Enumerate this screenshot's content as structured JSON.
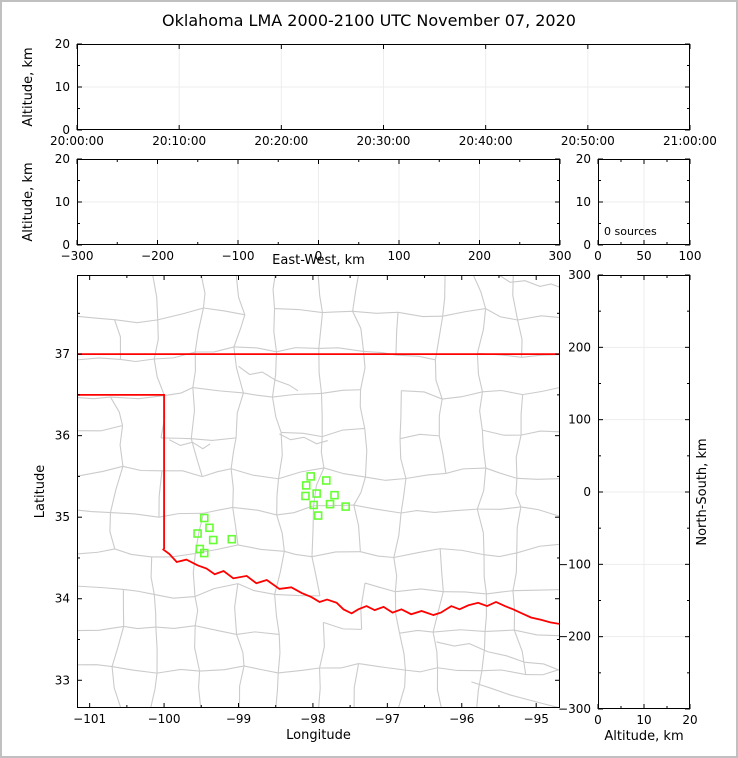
{
  "frame": {
    "title": "Oklahoma LMA 2000-2100 UTC November 07, 2020"
  },
  "colors": {
    "state_border": "#ff0000",
    "county": "#cbcbcb",
    "station": "#66ff33",
    "grid": "#ededed",
    "axis": "#000000",
    "frame_border": "#c0c0c0"
  },
  "panels": {
    "time_height": {
      "ylabel": "Altitude, km",
      "xlim": [
        0,
        60
      ],
      "ylim": [
        0,
        20
      ],
      "xticks": {
        "values": [
          0,
          10,
          20,
          30,
          40,
          50,
          60
        ],
        "labels": [
          "20:00:00",
          "20:10:00",
          "20:20:00",
          "20:30:00",
          "20:40:00",
          "20:50:00",
          "21:00:00"
        ]
      },
      "yticks": {
        "values": [
          0,
          10,
          20
        ],
        "labels": [
          "0",
          "10",
          "20"
        ]
      },
      "yminor": [
        5,
        15
      ],
      "grid": {
        "x": true,
        "y": true
      },
      "ylabel_dx": 45
    },
    "ew_height": {
      "xlabel": "East-West, km",
      "ylabel": "Altitude, km",
      "xlim": [
        -300,
        300
      ],
      "ylim": [
        0,
        20
      ],
      "xticks": {
        "values": [
          -300,
          -200,
          -100,
          0,
          100,
          200,
          300
        ],
        "labels": [
          "−300",
          "−200",
          "−100",
          "0",
          "100",
          "200",
          "300"
        ]
      },
      "yticks": {
        "values": [
          0,
          10,
          20
        ],
        "labels": [
          "0",
          "10",
          "20"
        ]
      },
      "xminor": [
        -250,
        -150,
        -50,
        50,
        150,
        250
      ],
      "yminor": [
        5,
        15
      ],
      "grid": {
        "x": true,
        "y": true
      },
      "xlabel_dy": 19,
      "ylabel_dx": 45
    },
    "alt_histogram": {
      "xlim": [
        0,
        100
      ],
      "ylim": [
        0,
        20
      ],
      "xticks": {
        "values": [
          0,
          50,
          100
        ],
        "labels": [
          "0",
          "50",
          "100"
        ]
      },
      "yticks": {
        "values": [
          0,
          10,
          20
        ],
        "labels": [
          "0",
          "10",
          "20"
        ]
      },
      "xminor": [
        25,
        75
      ],
      "yminor": [
        5,
        15
      ],
      "grid": {
        "x": true,
        "y": true
      },
      "annotation": "0 sources"
    },
    "map": {
      "xlabel": "Longitude",
      "ylabel": "Latitude",
      "xlim": [
        -101.17,
        -94.68
      ],
      "ylim": [
        32.66,
        37.97
      ],
      "xticks": {
        "values": [
          -101,
          -100,
          -99,
          -98,
          -97,
          -96,
          -95
        ],
        "labels": [
          "−101",
          "−100",
          "−99",
          "−98",
          "−97",
          "−96",
          "−95"
        ]
      },
      "yticks": {
        "values": [
          33,
          34,
          35,
          36,
          37
        ],
        "labels": [
          "33",
          "34",
          "35",
          "36",
          "37"
        ]
      },
      "xminor": [
        -100.5,
        -99.5,
        -98.5,
        -97.5,
        -96.5,
        -95.5
      ],
      "yminor": [
        33.5,
        34.5,
        35.5,
        36.5,
        37.5
      ],
      "xlabel_dy": 31,
      "ylabel_dx": 33
    },
    "ns_height": {
      "xlabel": "Altitude, km",
      "ylabel": "North-South, km",
      "ylabel_side": "right",
      "xlim": [
        0,
        20
      ],
      "ylim": [
        -300,
        300
      ],
      "xticks": {
        "values": [
          0,
          10,
          20
        ],
        "labels": [
          "0",
          "10",
          "20"
        ]
      },
      "yticks": {
        "values": [
          -300,
          -200,
          -100,
          0,
          100,
          200,
          300
        ],
        "labels": [
          "−300",
          "−200",
          "−100",
          "0",
          "100",
          "200",
          "300"
        ]
      },
      "xminor": [
        5,
        15
      ],
      "yminor": [
        -250,
        -150,
        -50,
        50,
        150,
        250
      ],
      "grid": {
        "x": true,
        "y": true
      },
      "xlabel_dy": 31
    }
  },
  "chart_data": [
    {
      "panel": "time_height",
      "type": "scatter",
      "xlabel_ticks": "20:00:00 to 21:00:00 UTC",
      "ylabel": "Altitude, km",
      "xlim": [
        "20:00:00",
        "21:00:00"
      ],
      "ylim": [
        0,
        20
      ],
      "points": []
    },
    {
      "panel": "ew_height",
      "type": "scatter",
      "xlabel": "East-West, km",
      "ylabel": "Altitude, km",
      "xlim": [
        -300,
        300
      ],
      "ylim": [
        0,
        20
      ],
      "points": []
    },
    {
      "panel": "alt_histogram",
      "type": "line",
      "annotation": "0 sources",
      "xlim": [
        0,
        100
      ],
      "ylim": [
        0,
        20
      ],
      "points": []
    },
    {
      "panel": "map",
      "type": "scatter",
      "xlabel": "Longitude",
      "ylabel": "Latitude",
      "xlim": [
        -101.17,
        -94.68
      ],
      "ylim": [
        32.66,
        37.97
      ],
      "points": [],
      "stations": [
        [
          -98.03,
          35.5
        ],
        [
          -97.82,
          35.45
        ],
        [
          -98.09,
          35.39
        ],
        [
          -97.95,
          35.29
        ],
        [
          -98.1,
          35.26
        ],
        [
          -97.71,
          35.27
        ],
        [
          -97.77,
          35.16
        ],
        [
          -97.99,
          35.15
        ],
        [
          -97.56,
          35.13
        ],
        [
          -97.93,
          35.02
        ],
        [
          -99.46,
          34.99
        ],
        [
          -99.39,
          34.87
        ],
        [
          -99.55,
          34.8
        ],
        [
          -99.09,
          34.73
        ],
        [
          -99.34,
          34.72
        ],
        [
          -99.52,
          34.61
        ],
        [
          -99.46,
          34.56
        ]
      ],
      "state_border": [
        {
          "name": "oklahoma-north-border",
          "points": [
            [
              -101.17,
              37.0
            ],
            [
              -94.68,
              37.0
            ]
          ]
        },
        {
          "name": "oklahoma-panhandle-and-west-border",
          "points": [
            [
              -101.17,
              36.5
            ],
            [
              -100.0,
              36.5
            ],
            [
              -100.0,
              34.61
            ]
          ]
        },
        {
          "name": "oklahoma-red-river-south-border",
          "points": [
            [
              -100.02,
              34.61
            ],
            [
              -99.93,
              34.55
            ],
            [
              -99.83,
              34.45
            ],
            [
              -99.7,
              34.48
            ],
            [
              -99.55,
              34.41
            ],
            [
              -99.43,
              34.37
            ],
            [
              -99.32,
              34.3
            ],
            [
              -99.2,
              34.34
            ],
            [
              -99.07,
              34.25
            ],
            [
              -98.89,
              34.28
            ],
            [
              -98.76,
              34.19
            ],
            [
              -98.62,
              34.23
            ],
            [
              -98.45,
              34.12
            ],
            [
              -98.29,
              34.14
            ],
            [
              -98.15,
              34.07
            ],
            [
              -98.02,
              34.02
            ],
            [
              -97.91,
              33.96
            ],
            [
              -97.81,
              33.99
            ],
            [
              -97.68,
              33.95
            ],
            [
              -97.59,
              33.87
            ],
            [
              -97.48,
              33.82
            ],
            [
              -97.39,
              33.87
            ],
            [
              -97.28,
              33.91
            ],
            [
              -97.17,
              33.86
            ],
            [
              -97.05,
              33.9
            ],
            [
              -96.93,
              33.83
            ],
            [
              -96.81,
              33.87
            ],
            [
              -96.68,
              33.81
            ],
            [
              -96.54,
              33.85
            ],
            [
              -96.38,
              33.8
            ],
            [
              -96.28,
              33.83
            ],
            [
              -96.14,
              33.91
            ],
            [
              -96.03,
              33.87
            ],
            [
              -95.91,
              33.92
            ],
            [
              -95.78,
              33.95
            ],
            [
              -95.66,
              33.91
            ],
            [
              -95.54,
              33.96
            ],
            [
              -95.42,
              33.91
            ],
            [
              -95.31,
              33.87
            ],
            [
              -95.19,
              33.82
            ],
            [
              -95.07,
              33.77
            ],
            [
              -94.93,
              33.74
            ],
            [
              -94.81,
              33.71
            ],
            [
              -94.68,
              33.69
            ]
          ]
        }
      ],
      "rivers": [
        [
          [
            -96.34,
            33.47
          ],
          [
            -96.1,
            33.42
          ],
          [
            -95.9,
            33.45
          ],
          [
            -95.65,
            33.35
          ],
          [
            -95.4,
            33.3
          ],
          [
            -95.15,
            33.22
          ],
          [
            -94.9,
            33.2
          ],
          [
            -94.68,
            33.12
          ]
        ],
        [
          [
            -95.87,
            32.98
          ],
          [
            -95.6,
            32.9
          ],
          [
            -95.35,
            32.82
          ],
          [
            -95.1,
            32.76
          ],
          [
            -94.85,
            32.7
          ],
          [
            -94.68,
            32.66
          ]
        ],
        [
          [
            -99.93,
            35.95
          ],
          [
            -99.78,
            35.88
          ],
          [
            -99.62,
            35.92
          ],
          [
            -99.48,
            35.84
          ],
          [
            -99.38,
            35.9
          ]
        ],
        [
          [
            -99.0,
            36.85
          ],
          [
            -98.85,
            36.75
          ],
          [
            -98.68,
            36.78
          ],
          [
            -98.5,
            36.68
          ],
          [
            -98.32,
            36.62
          ],
          [
            -98.2,
            36.55
          ]
        ],
        [
          [
            -98.45,
            36.02
          ],
          [
            -98.3,
            35.95
          ],
          [
            -98.12,
            35.98
          ],
          [
            -97.95,
            35.9
          ],
          [
            -97.8,
            35.94
          ]
        ],
        [
          [
            -95.5,
            37.97
          ],
          [
            -95.35,
            37.88
          ],
          [
            -95.15,
            37.9
          ],
          [
            -94.95,
            37.83
          ],
          [
            -94.8,
            37.86
          ],
          [
            -94.68,
            37.82
          ]
        ]
      ]
    },
    {
      "panel": "ns_height",
      "type": "scatter",
      "xlabel": "Altitude, km",
      "ylabel": "North-South, km",
      "xlim": [
        0,
        20
      ],
      "ylim": [
        -300,
        300
      ],
      "points": []
    }
  ]
}
